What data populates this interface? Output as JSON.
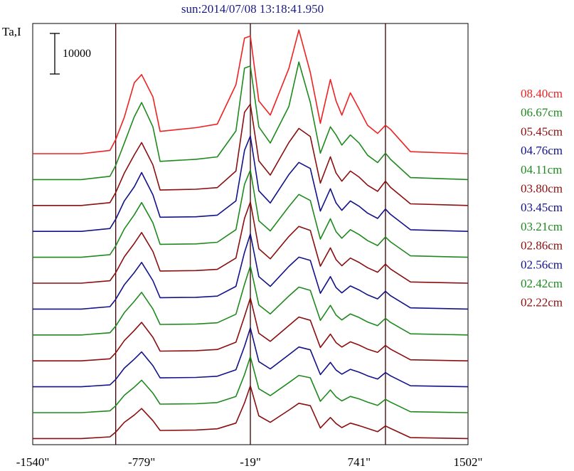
{
  "chart_data": {
    "type": "line",
    "title": "sun:2014/07/08 13:18:41.950",
    "ylabel": "Ta,I",
    "xlabel": "",
    "scale_bar_label": "10000",
    "scale_bar_value": 10000,
    "x_range": [
      -1540,
      1502
    ],
    "xticks": [
      {
        "value": -1540,
        "label": "-1540\""
      },
      {
        "value": -779,
        "label": "-779\""
      },
      {
        "value": -19,
        "label": "-19\""
      },
      {
        "value": 741,
        "label": "741\""
      },
      {
        "value": 1502,
        "label": "1502\""
      }
    ],
    "vertical_markers": [
      -960,
      -19,
      925
    ],
    "grid": false,
    "legend_position": "right",
    "colors": {
      "red": "#ee2222",
      "green": "#1e8a1e",
      "darkred": "#8a0f0f",
      "blue": "#12128a",
      "frame": "#000000",
      "title": "#1a1a80"
    },
    "series": [
      {
        "name": "08.40cm",
        "color": "#ee2222",
        "x": [
          -1540,
          -1200,
          -1000,
          -960,
          -900,
          -830,
          -779,
          -700,
          -650,
          -400,
          -250,
          -120,
          -60,
          -19,
          40,
          120,
          250,
          320,
          400,
          470,
          540,
          580,
          620,
          680,
          741,
          800,
          870,
          925,
          960,
          1100,
          1502
        ],
        "y": [
          0,
          0,
          800,
          3500,
          9000,
          17500,
          19500,
          14000,
          5500,
          6400,
          7300,
          17000,
          28500,
          29000,
          13000,
          9500,
          21000,
          30500,
          20000,
          7500,
          18300,
          13000,
          9500,
          15000,
          11000,
          7000,
          5000,
          7000,
          6000,
          500,
          0
        ]
      },
      {
        "name": "06.67cm",
        "color": "#1e8a1e",
        "x": [
          -1540,
          -1200,
          -1000,
          -960,
          -900,
          -830,
          -779,
          -700,
          -650,
          -400,
          -250,
          -120,
          -60,
          -19,
          40,
          120,
          250,
          320,
          400,
          470,
          540,
          580,
          620,
          680,
          741,
          800,
          870,
          925,
          960,
          1100,
          1502
        ],
        "y": [
          0,
          0,
          800,
          3500,
          9000,
          15500,
          19000,
          13000,
          4500,
          5000,
          5600,
          12000,
          27500,
          28000,
          13000,
          9000,
          18000,
          29000,
          19000,
          6500,
          13000,
          11000,
          8500,
          11000,
          9000,
          6000,
          4200,
          6500,
          5000,
          500,
          0
        ]
      },
      {
        "name": "05.45cm",
        "color": "#8a0f0f",
        "x": [
          -1540,
          -1200,
          -1000,
          -960,
          -900,
          -830,
          -779,
          -700,
          -650,
          -400,
          -250,
          -120,
          -60,
          -19,
          40,
          120,
          250,
          320,
          400,
          470,
          540,
          580,
          620,
          680,
          741,
          800,
          870,
          925,
          960,
          1100,
          1502
        ],
        "y": [
          0,
          0,
          700,
          3200,
          8000,
          12500,
          15500,
          10000,
          3800,
          4000,
          4400,
          8500,
          23000,
          25000,
          11000,
          7500,
          15500,
          19000,
          17000,
          5500,
          12000,
          8000,
          6000,
          8500,
          7000,
          5000,
          3500,
          6000,
          4500,
          400,
          0
        ]
      },
      {
        "name": "04.76cm",
        "color": "#12128a",
        "x": [
          -1540,
          -1200,
          -1000,
          -960,
          -900,
          -830,
          -779,
          -700,
          -650,
          -400,
          -250,
          -120,
          -60,
          -19,
          40,
          120,
          250,
          320,
          400,
          470,
          540,
          580,
          620,
          680,
          741,
          800,
          870,
          925,
          960,
          1100,
          1502
        ],
        "y": [
          0,
          0,
          700,
          3000,
          7500,
          11000,
          14500,
          9000,
          3500,
          3600,
          4000,
          7500,
          20000,
          23500,
          10000,
          7000,
          14000,
          17000,
          15500,
          5000,
          10500,
          7000,
          5200,
          7500,
          6200,
          4500,
          3200,
          5500,
          4200,
          400,
          0
        ]
      },
      {
        "name": "04.11cm",
        "color": "#1e8a1e",
        "x": [
          -1540,
          -1200,
          -1000,
          -960,
          -900,
          -830,
          -779,
          -700,
          -650,
          -400,
          -250,
          -120,
          -60,
          -19,
          40,
          120,
          250,
          320,
          400,
          470,
          540,
          580,
          620,
          680,
          741,
          800,
          870,
          925,
          960,
          1100,
          1502
        ],
        "y": [
          0,
          0,
          650,
          2800,
          7000,
          10500,
          13500,
          8500,
          3200,
          3300,
          3700,
          6800,
          18000,
          21500,
          9000,
          6500,
          12500,
          15500,
          14000,
          4500,
          9500,
          6300,
          4700,
          6800,
          5600,
          4100,
          2900,
          5000,
          3800,
          350,
          0
        ]
      },
      {
        "name": "03.80cm",
        "color": "#8a0f0f",
        "x": [
          -1540,
          -1200,
          -1000,
          -960,
          -900,
          -830,
          -779,
          -700,
          -650,
          -400,
          -250,
          -120,
          -60,
          -19,
          40,
          120,
          250,
          320,
          400,
          470,
          540,
          580,
          620,
          680,
          741,
          800,
          870,
          925,
          960,
          1100,
          1502
        ],
        "y": [
          0,
          0,
          600,
          2600,
          6500,
          9800,
          12500,
          7800,
          3000,
          3100,
          3400,
          6200,
          16000,
          20000,
          8500,
          6000,
          11500,
          14000,
          13000,
          4200,
          8700,
          5800,
          4300,
          6200,
          5100,
          3800,
          2700,
          4700,
          3500,
          300,
          0
        ]
      },
      {
        "name": "03.45cm",
        "color": "#12128a",
        "x": [
          -1540,
          -1200,
          -1000,
          -960,
          -900,
          -830,
          -779,
          -700,
          -650,
          -400,
          -250,
          -120,
          -60,
          -19,
          40,
          120,
          250,
          320,
          400,
          470,
          540,
          580,
          620,
          680,
          741,
          800,
          870,
          925,
          960,
          1100,
          1502
        ],
        "y": [
          0,
          0,
          600,
          2400,
          6000,
          9000,
          11500,
          7000,
          2800,
          2900,
          3200,
          5600,
          14000,
          18500,
          8000,
          5600,
          10500,
          12800,
          12000,
          3900,
          8000,
          5300,
          4000,
          5700,
          4700,
          3500,
          2500,
          4400,
          3300,
          300,
          0
        ]
      },
      {
        "name": "03.21cm",
        "color": "#1e8a1e",
        "x": [
          -1540,
          -1200,
          -1000,
          -960,
          -900,
          -830,
          -779,
          -700,
          -650,
          -400,
          -250,
          -120,
          -60,
          -19,
          40,
          120,
          250,
          320,
          400,
          470,
          540,
          580,
          620,
          680,
          741,
          800,
          870,
          925,
          960,
          1100,
          1502
        ],
        "y": [
          0,
          0,
          550,
          2200,
          5500,
          8300,
          10500,
          6400,
          2600,
          2700,
          3000,
          5100,
          12500,
          17000,
          7400,
          5200,
          9600,
          11800,
          11000,
          3600,
          7300,
          4900,
          3700,
          5200,
          4300,
          3200,
          2300,
          4100,
          3100,
          280,
          0
        ]
      },
      {
        "name": "02.86cm",
        "color": "#8a0f0f",
        "x": [
          -1540,
          -1200,
          -1000,
          -960,
          -900,
          -830,
          -779,
          -700,
          -650,
          -400,
          -250,
          -120,
          -60,
          -19,
          40,
          120,
          250,
          320,
          400,
          470,
          540,
          580,
          620,
          680,
          741,
          800,
          870,
          925,
          960,
          1100,
          1502
        ],
        "y": [
          0,
          0,
          500,
          2000,
          5000,
          7500,
          9500,
          5800,
          2400,
          2500,
          2800,
          4600,
          11000,
          15500,
          6800,
          4800,
          8700,
          10800,
          10000,
          3300,
          6600,
          4500,
          3400,
          4700,
          3900,
          2900,
          2100,
          3800,
          2900,
          260,
          0
        ]
      },
      {
        "name": "02.56cm",
        "color": "#12128a",
        "x": [
          -1540,
          -1200,
          -1000,
          -960,
          -900,
          -830,
          -779,
          -700,
          -650,
          -400,
          -250,
          -120,
          -60,
          -19,
          40,
          120,
          250,
          320,
          400,
          470,
          540,
          580,
          620,
          680,
          741,
          800,
          870,
          925,
          960,
          1100,
          1502
        ],
        "y": [
          0,
          0,
          480,
          1800,
          4600,
          6800,
          8600,
          5200,
          2200,
          2300,
          2600,
          4200,
          10000,
          14500,
          6200,
          4400,
          7900,
          9800,
          9100,
          3000,
          6000,
          4100,
          3100,
          4300,
          3600,
          2700,
          1900,
          3500,
          2700,
          240,
          0
        ]
      },
      {
        "name": "02.42cm",
        "color": "#1e8a1e",
        "x": [
          -1540,
          -1200,
          -1000,
          -960,
          -900,
          -830,
          -779,
          -700,
          -650,
          -400,
          -250,
          -120,
          -60,
          -19,
          40,
          120,
          250,
          320,
          400,
          470,
          540,
          580,
          620,
          680,
          741,
          800,
          870,
          925,
          960,
          1100,
          1502
        ],
        "y": [
          0,
          0,
          450,
          1700,
          4300,
          6300,
          8000,
          4800,
          2100,
          2200,
          2500,
          4000,
          9400,
          13800,
          5900,
          4200,
          7400,
          9200,
          8600,
          2800,
          5600,
          3900,
          2900,
          4000,
          3400,
          2600,
          1800,
          3300,
          2600,
          230,
          0
        ]
      },
      {
        "name": "02.22cm",
        "color": "#8a0f0f",
        "x": [
          -1540,
          -1200,
          -1000,
          -960,
          -900,
          -830,
          -779,
          -700,
          -650,
          -400,
          -250,
          -120,
          -60,
          -19,
          40,
          120,
          250,
          320,
          400,
          470,
          540,
          580,
          620,
          680,
          741,
          800,
          870,
          925,
          960,
          1100,
          1502
        ],
        "y": [
          0,
          0,
          420,
          1600,
          4000,
          5800,
          7400,
          4400,
          2000,
          2100,
          2400,
          3800,
          8800,
          13000,
          5600,
          4000,
          7000,
          8700,
          8100,
          2600,
          5200,
          3700,
          2700,
          3800,
          3200,
          2500,
          1700,
          3100,
          2500,
          220,
          0
        ]
      }
    ]
  }
}
